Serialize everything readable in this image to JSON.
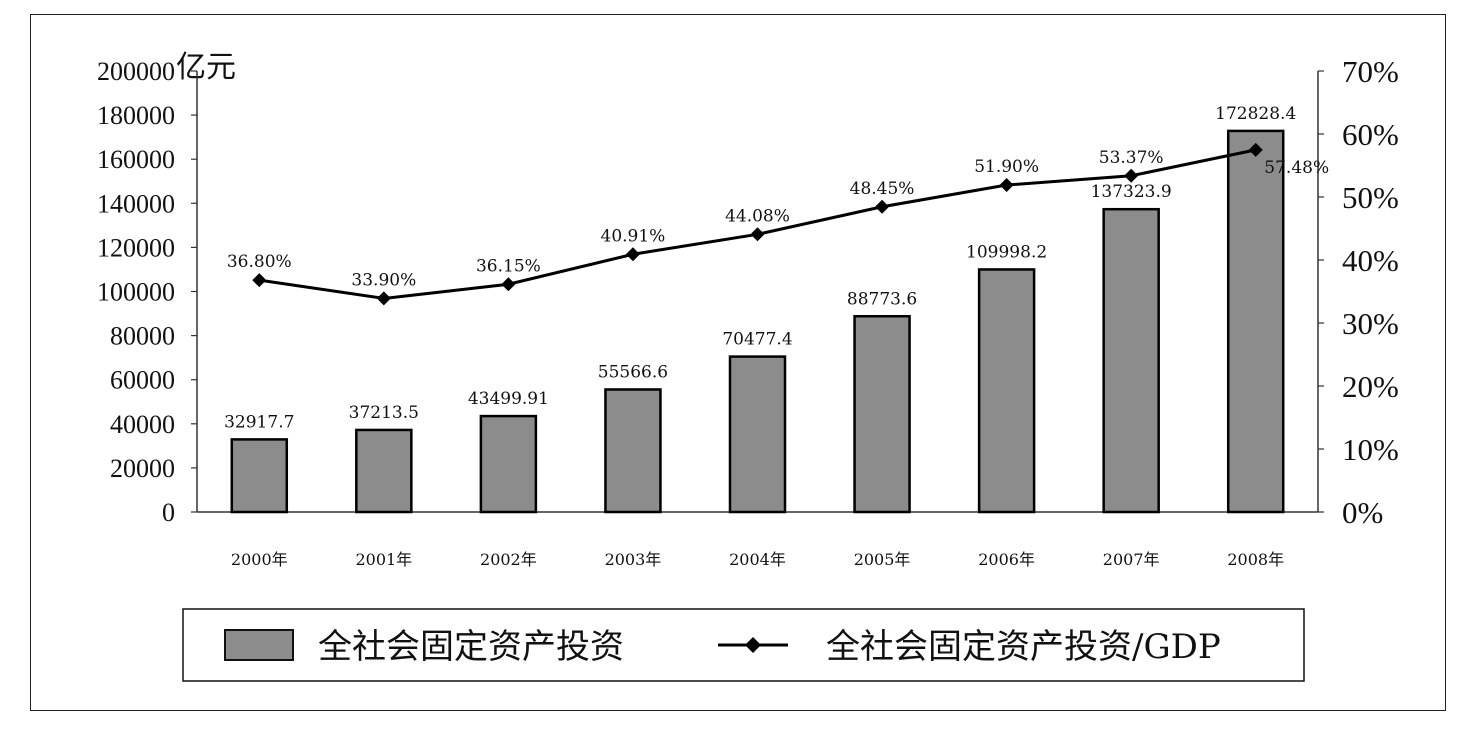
{
  "chart_data": {
    "type": "bar",
    "y_unit_label": "亿元",
    "categories": [
      "2000年",
      "2001年",
      "2002年",
      "2003年",
      "2004年",
      "2005年",
      "2006年",
      "2007年",
      "2008年"
    ],
    "series": [
      {
        "name": "全社会固定资产投资",
        "type": "bar",
        "axis": "left",
        "values": [
          32917.7,
          37213.5,
          43499.91,
          55566.6,
          70477.4,
          88773.6,
          109998.2,
          137323.9,
          172828.4
        ],
        "labels": [
          "32917.7",
          "37213.5",
          "43499.91",
          "55566.6",
          "70477.4",
          "88773.6",
          "109998.2",
          "137323.9",
          "172828.4"
        ]
      },
      {
        "name": "全社会固定资产投资/GDP",
        "type": "line",
        "axis": "right",
        "values": [
          36.8,
          33.9,
          36.15,
          40.91,
          44.08,
          48.45,
          51.9,
          53.37,
          57.48
        ],
        "labels": [
          "36.80%",
          "33.90%",
          "36.15%",
          "40.91%",
          "44.08%",
          "48.45%",
          "51.90%",
          "53.37%",
          "57.48%"
        ]
      }
    ],
    "y_left": {
      "lim": [
        0,
        200000
      ],
      "ticks": [
        "0",
        "20000",
        "40000",
        "60000",
        "80000",
        "100000",
        "120000",
        "140000",
        "160000",
        "180000",
        "200000"
      ]
    },
    "y_right": {
      "lim": [
        0,
        70
      ],
      "ticks": [
        "0%",
        "10%",
        "20%",
        "30%",
        "40%",
        "50%",
        "60%",
        "70%"
      ]
    },
    "legend_position": "bottom",
    "grid": false,
    "colors": {
      "bar": "#8c8c8c",
      "bar_edge": "#000000",
      "line": "#000000"
    }
  }
}
